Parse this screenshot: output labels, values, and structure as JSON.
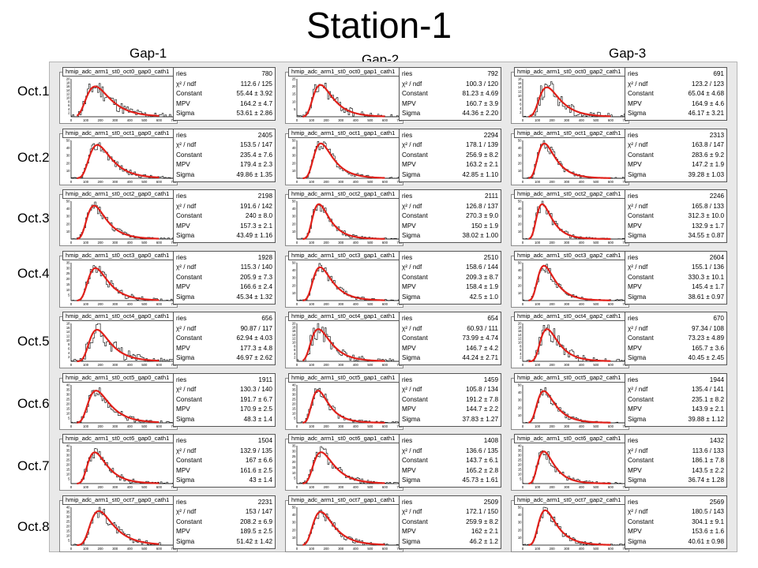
{
  "title": "Station-1",
  "gap_labels": [
    "Gap-1",
    "Gap-2",
    "Gap-3"
  ],
  "oct_labels": [
    "Oct.1",
    "Oct.2",
    "Oct.3",
    "Oct.4",
    "Oct.5",
    "Oct.6",
    "Oct.7",
    "Oct.8"
  ],
  "stat_keys": [
    "ries",
    "χ² / ndf",
    "Constant",
    "MPV",
    "Sigma"
  ],
  "colors": {
    "fit": "#e0201a",
    "hist": "#000000",
    "panel": "#e9e9e9"
  },
  "chart_data": {
    "type": "histogram-grid",
    "x_tick_labels": [
      "0",
      "100",
      "200",
      "300",
      "400",
      "500",
      "600",
      "700"
    ],
    "xlim": [
      0,
      700
    ],
    "rows": [
      {
        "cells": [
          {
            "name": "hmip_adc_arm1_st0_oct0_gap0_cath1",
            "entries": "780",
            "chi2": "112.6 / 125",
            "constant": "55.44 ± 3.92",
            "mpv": "164.2 ± 4.7",
            "sigma": "53.61 ± 2.86",
            "ymax": 20,
            "yticks": [
              "2",
              "4",
              "6",
              "8",
              "10",
              "12",
              "14",
              "16",
              "18",
              "20"
            ],
            "peak": 16
          },
          {
            "name": "hmip_adc_arm1_st0_oct0_gap1_cath1",
            "entries": "792",
            "chi2": "100.3 / 120",
            "constant": "81.23 ± 4.69",
            "mpv": "160.7 ± 3.9",
            "sigma": "44.36 ± 2.20",
            "ymax": 25,
            "yticks": [
              "5",
              "10",
              "15",
              "20",
              "25"
            ],
            "peak": 21
          },
          {
            "name": "hmip_adc_arm1_st0_oct0_gap2_cath1",
            "entries": "691",
            "chi2": "123.2 / 123",
            "constant": "65.04 ± 4.68",
            "mpv": "164.9 ± 4.6",
            "sigma": "46.17 ± 3.21",
            "ymax": 18,
            "yticks": [
              "2",
              "4",
              "6",
              "8",
              "10",
              "12",
              "14",
              "16",
              "18"
            ],
            "peak": 14
          }
        ]
      },
      {
        "cells": [
          {
            "name": "hmip_adc_arm1_st0_oct1_gap0_cath1",
            "entries": "2405",
            "chi2": "153.5 / 147",
            "constant": "235.4 ± 7.6",
            "mpv": "179.4 ± 2.3",
            "sigma": "49.86 ± 1.35",
            "ymax": 50,
            "yticks": [
              "10",
              "20",
              "30",
              "40",
              "50"
            ],
            "peak": 44
          },
          {
            "name": "hmip_adc_arm1_st0_oct1_gap1_cath1",
            "entries": "2294",
            "chi2": "178.1 / 139",
            "constant": "256.9 ± 8.2",
            "mpv": "163.2 ± 2.1",
            "sigma": "42.85 ± 1.10",
            "ymax": 50,
            "yticks": [
              "10",
              "20",
              "30",
              "40",
              "50"
            ],
            "peak": 46
          },
          {
            "name": "hmip_adc_arm1_st0_oct1_gap2_cath1",
            "entries": "2313",
            "chi2": "163.8 / 147",
            "constant": "283.6 ± 9.2",
            "mpv": "147.2 ± 1.9",
            "sigma": "39.28 ± 1.03",
            "ymax": 50,
            "yticks": [
              "10",
              "20",
              "30",
              "40",
              "50"
            ],
            "peak": 46
          }
        ]
      },
      {
        "cells": [
          {
            "name": "hmip_adc_arm1_st0_oct2_gap0_cath1",
            "entries": "2198",
            "chi2": "191.6 / 142",
            "constant": "240 ± 8.0",
            "mpv": "157.3 ± 2.1",
            "sigma": "43.49 ± 1.16",
            "ymax": 50,
            "yticks": [
              "10",
              "20",
              "30",
              "40",
              "50"
            ],
            "peak": 44
          },
          {
            "name": "hmip_adc_arm1_st0_oct2_gap1_cath1",
            "entries": "2111",
            "chi2": "126.8 / 137",
            "constant": "270.3 ± 9.0",
            "mpv": "150 ± 1.9",
            "sigma": "38.02 ± 1.00",
            "ymax": 50,
            "yticks": [
              "10",
              "20",
              "30",
              "40",
              "50"
            ],
            "peak": 46
          },
          {
            "name": "hmip_adc_arm1_st0_oct2_gap2_cath1",
            "entries": "2246",
            "chi2": "165.8 / 133",
            "constant": "312.3 ± 10.0",
            "mpv": "132.9 ± 1.7",
            "sigma": "34.55 ± 0.87",
            "ymax": 50,
            "yticks": [
              "10",
              "20",
              "30",
              "40",
              "50"
            ],
            "peak": 46
          }
        ]
      },
      {
        "cells": [
          {
            "name": "hmip_adc_arm1_st0_oct3_gap0_cath1",
            "entries": "1928",
            "chi2": "115.3 / 140",
            "constant": "205.9 ± 7.3",
            "mpv": "166.6 ± 2.4",
            "sigma": "45.34 ± 1.32",
            "ymax": 35,
            "yticks": [
              "5",
              "10",
              "15",
              "20",
              "25",
              "30",
              "35"
            ],
            "peak": 30
          },
          {
            "name": "hmip_adc_arm1_st0_oct3_gap1_cath1",
            "entries": "2510",
            "chi2": "158.6 / 144",
            "constant": "209.3 ± 8.7",
            "mpv": "158.4 ± 1.9",
            "sigma": "42.5 ± 1.0",
            "ymax": 50,
            "yticks": [
              "10",
              "20",
              "30",
              "40",
              "50"
            ],
            "peak": 44
          },
          {
            "name": "hmip_adc_arm1_st0_oct3_gap2_cath1",
            "entries": "2604",
            "chi2": "155.1 / 136",
            "constant": "330.3 ± 10.1",
            "mpv": "145.4 ± 1.7",
            "sigma": "38.61 ± 0.97",
            "ymax": 50,
            "yticks": [
              "10",
              "20",
              "30",
              "40",
              "50"
            ],
            "peak": 46
          }
        ]
      },
      {
        "cells": [
          {
            "name": "hmip_adc_arm1_st0_oct4_gap0_cath1",
            "entries": "656",
            "chi2": "90.87 / 117",
            "constant": "62.94 ± 4.03",
            "mpv": "177.3 ± 4.8",
            "sigma": "46.97 ± 2.62",
            "ymax": 18,
            "yticks": [
              "2",
              "4",
              "6",
              "8",
              "10",
              "12",
              "14",
              "16",
              "18"
            ],
            "peak": 15
          },
          {
            "name": "hmip_adc_arm1_st0_oct4_gap1_cath1",
            "entries": "654",
            "chi2": "60.93 / 111",
            "constant": "73.99 ± 4.74",
            "mpv": "146.7 ± 4.2",
            "sigma": "44.24 ± 2.71",
            "ymax": 20,
            "yticks": [
              "2",
              "4",
              "6",
              "8",
              "10",
              "12",
              "14",
              "16",
              "18",
              "20"
            ],
            "peak": 17
          },
          {
            "name": "hmip_adc_arm1_st0_oct4_gap2_cath1",
            "entries": "670",
            "chi2": "97.34 / 108",
            "constant": "73.23 ± 4.89",
            "mpv": "165.7 ± 3.6",
            "sigma": "40.45 ± 2.45",
            "ymax": 20,
            "yticks": [
              "2",
              "4",
              "6",
              "8",
              "10",
              "12",
              "14",
              "16",
              "18",
              "20"
            ],
            "peak": 17
          }
        ]
      },
      {
        "cells": [
          {
            "name": "hmip_adc_arm1_st0_oct5_gap0_cath1",
            "entries": "1911",
            "chi2": "130.3 / 140",
            "constant": "191.7 ± 6.7",
            "mpv": "170.9 ± 2.5",
            "sigma": "48.3 ± 1.4",
            "ymax": 40,
            "yticks": [
              "5",
              "10",
              "15",
              "20",
              "25",
              "30",
              "35",
              "40"
            ],
            "peak": 34
          },
          {
            "name": "hmip_adc_arm1_st0_oct5_gap1_cath1",
            "entries": "1459",
            "chi2": "105.8 / 134",
            "constant": "191.2 ± 7.8",
            "mpv": "144.7 ± 2.2",
            "sigma": "37.83 ± 1.27",
            "ymax": 40,
            "yticks": [
              "5",
              "10",
              "15",
              "20",
              "25",
              "30",
              "35",
              "40"
            ],
            "peak": 34
          },
          {
            "name": "hmip_adc_arm1_st0_oct5_gap2_cath1",
            "entries": "1944",
            "chi2": "135.4 / 141",
            "constant": "235.1 ± 8.2",
            "mpv": "143.9 ± 2.1",
            "sigma": "39.88 ± 1.12",
            "ymax": 50,
            "yticks": [
              "10",
              "20",
              "30",
              "40",
              "50"
            ],
            "peak": 42
          }
        ]
      },
      {
        "cells": [
          {
            "name": "hmip_adc_arm1_st0_oct6_gap0_cath1",
            "entries": "1504",
            "chi2": "132.9 / 135",
            "constant": "167 ± 6.6",
            "mpv": "161.6 ± 2.5",
            "sigma": "43 ± 1.4",
            "ymax": 40,
            "yticks": [
              "5",
              "10",
              "15",
              "20",
              "25",
              "30",
              "35",
              "40"
            ],
            "peak": 33
          },
          {
            "name": "hmip_adc_arm1_st0_oct6_gap1_cath1",
            "entries": "1408",
            "chi2": "136.6 / 135",
            "constant": "143.7 ± 6.1",
            "mpv": "165.2 ± 2.8",
            "sigma": "45.73 ± 1.61",
            "ymax": 35,
            "yticks": [
              "5",
              "10",
              "15",
              "20",
              "25",
              "30",
              "35"
            ],
            "peak": 29
          },
          {
            "name": "hmip_adc_arm1_st0_oct6_gap2_cath1",
            "entries": "1432",
            "chi2": "113.6 / 133",
            "constant": "186.1 ± 7.8",
            "mpv": "143.5 ± 2.2",
            "sigma": "36.74 ± 1.28",
            "ymax": 40,
            "yticks": [
              "5",
              "10",
              "15",
              "20",
              "25",
              "30",
              "35",
              "40"
            ],
            "peak": 34
          }
        ]
      },
      {
        "cells": [
          {
            "name": "hmip_adc_arm1_st0_oct7_gap0_cath1",
            "entries": "2231",
            "chi2": "153 / 147",
            "constant": "208.2 ± 6.9",
            "mpv": "189.5 ± 2.5",
            "sigma": "51.42 ± 1.42",
            "ymax": 40,
            "yticks": [
              "5",
              "10",
              "15",
              "20",
              "25",
              "30",
              "35",
              "40"
            ],
            "peak": 36
          },
          {
            "name": "hmip_adc_arm1_st0_oct7_gap1_cath1",
            "entries": "2509",
            "chi2": "172.1 / 150",
            "constant": "259.9 ± 8.2",
            "mpv": "162 ± 2.1",
            "sigma": "46.2 ± 1.2",
            "ymax": 50,
            "yticks": [
              "10",
              "20",
              "30",
              "40",
              "50"
            ],
            "peak": 44
          },
          {
            "name": "hmip_adc_arm1_st0_oct7_gap2_cath1",
            "entries": "2569",
            "chi2": "180.5 / 143",
            "constant": "304.1 ± 9.1",
            "mpv": "153.6 ± 1.6",
            "sigma": "40.61 ± 0.98",
            "ymax": 50,
            "yticks": [
              "10",
              "20",
              "30",
              "40",
              "50"
            ],
            "peak": 46
          }
        ]
      }
    ]
  }
}
